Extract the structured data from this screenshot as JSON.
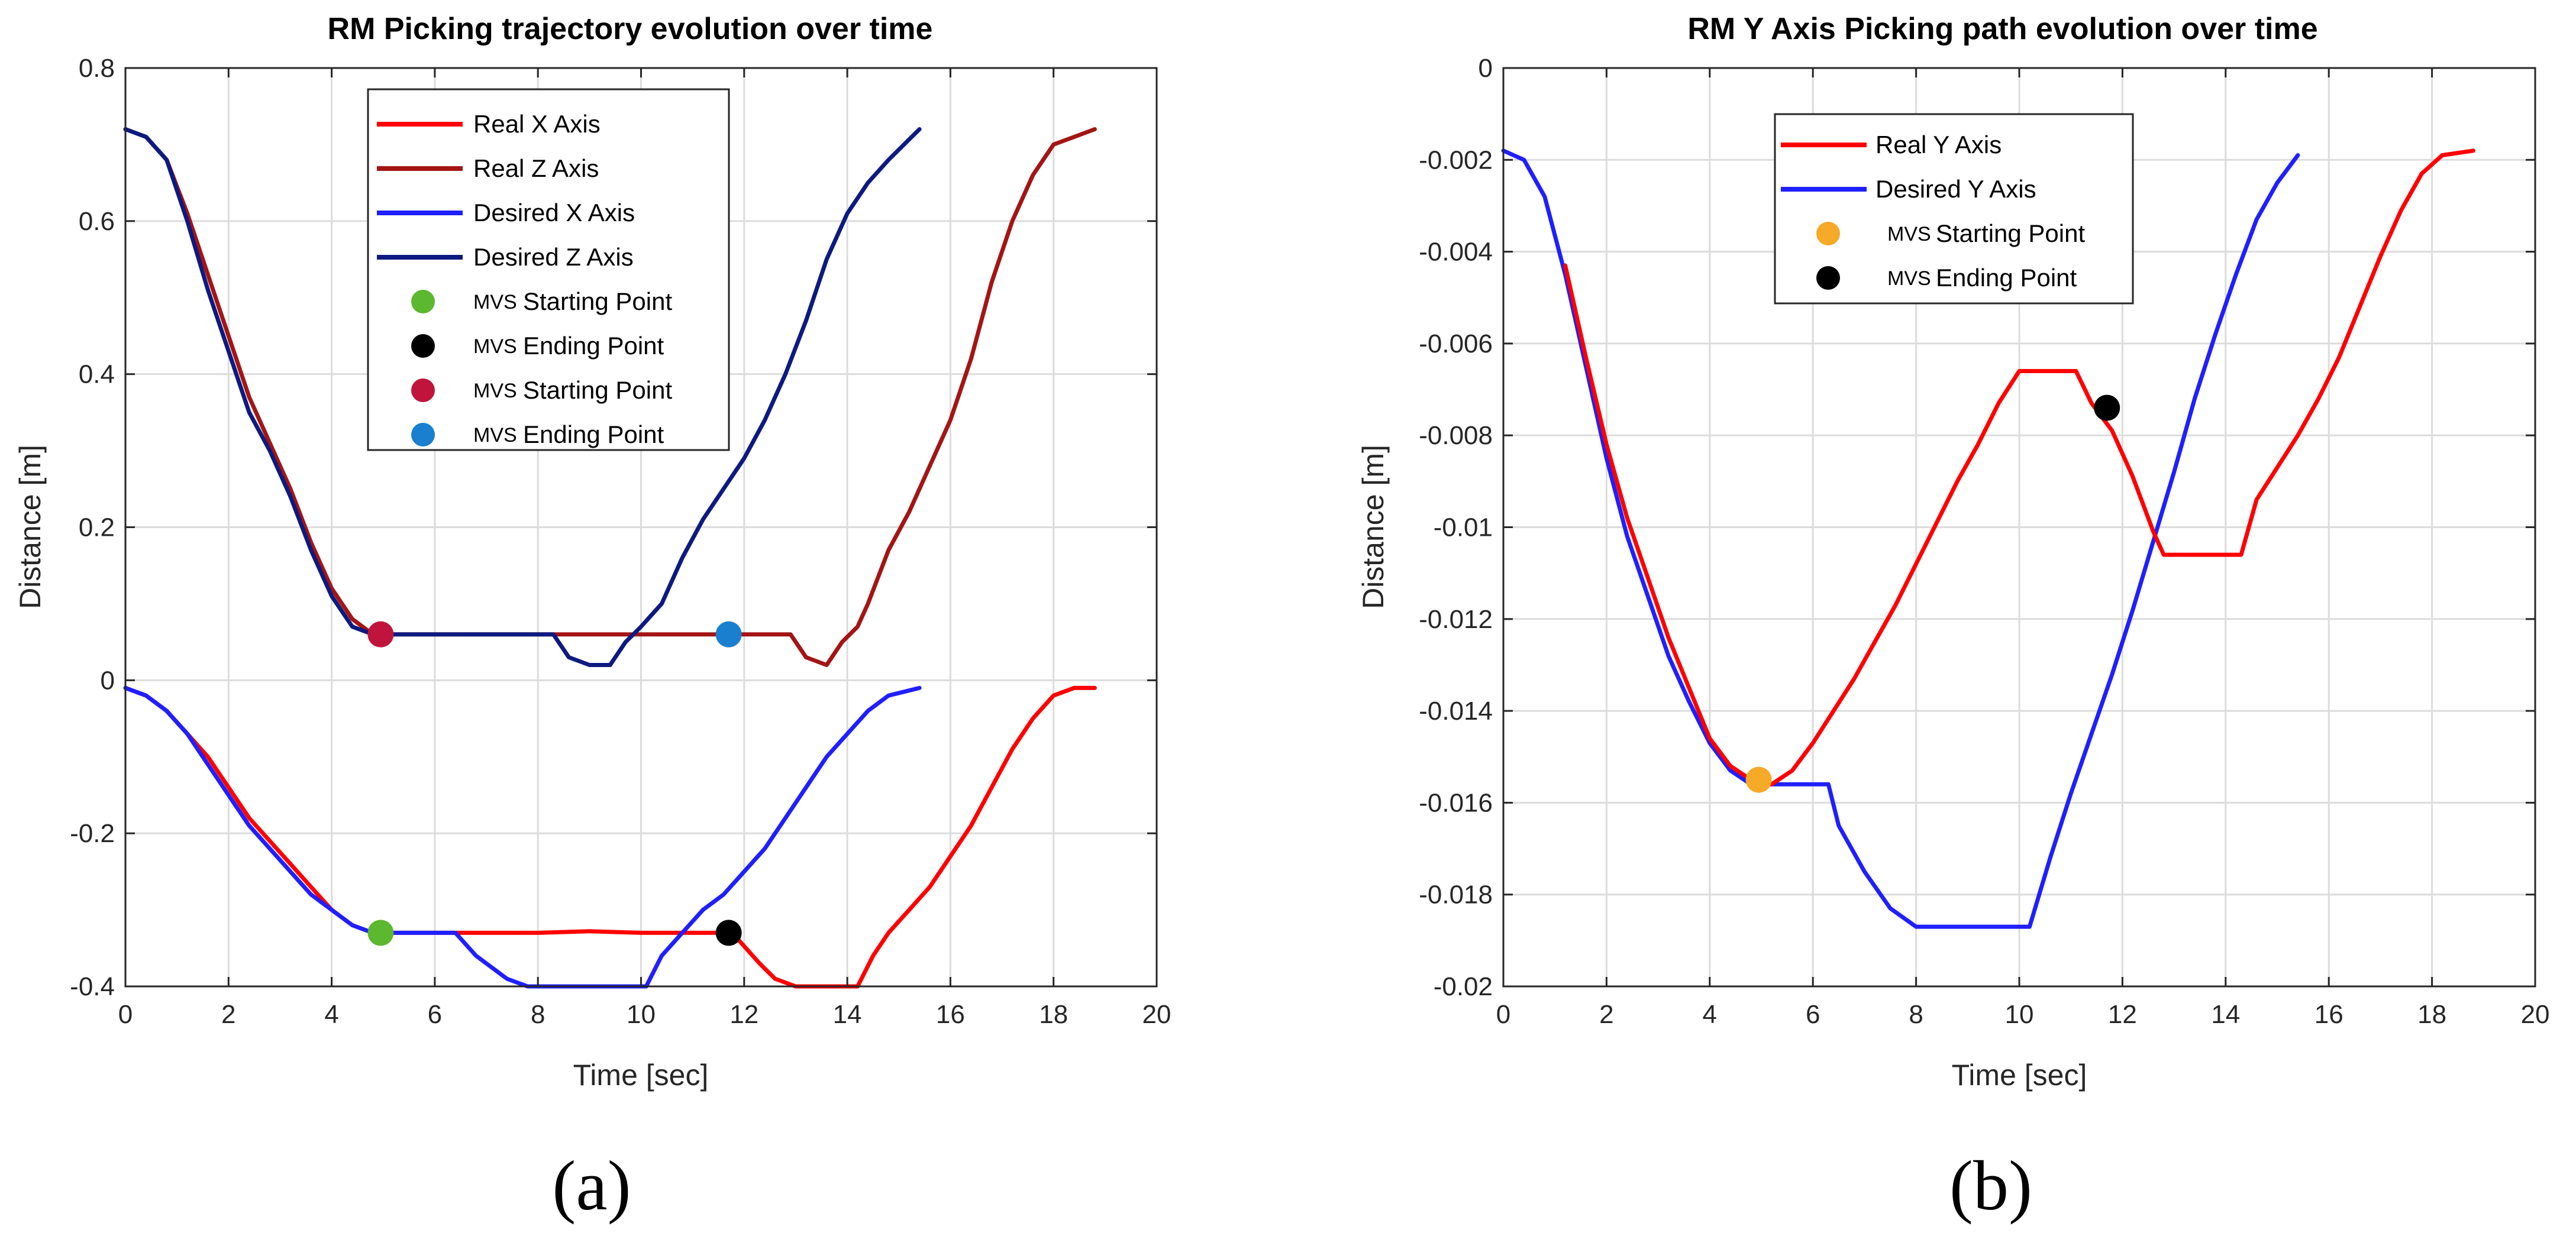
{
  "chart_data": [
    {
      "type": "line",
      "panel": "(a)",
      "title": "RM Picking trajectory evolution over time",
      "xlabel": "Time [sec]",
      "ylabel": "Distance [m]",
      "xlim": [
        0,
        20
      ],
      "ylim": [
        -0.4,
        0.8
      ],
      "xticks": [
        "0",
        "2",
        "4",
        "6",
        "8",
        "10",
        "12",
        "14",
        "16",
        "18",
        "20"
      ],
      "yticks": [
        "-0.4",
        "-0.2",
        "0",
        "0.2",
        "0.4",
        "0.6",
        "0.8"
      ],
      "grid": true,
      "legend_position": "top-center",
      "legend": [
        {
          "label": "Real X Axis",
          "kind": "line",
          "color": "#ff0000"
        },
        {
          "label": "Real Z Axis",
          "kind": "line",
          "color": "#a31515"
        },
        {
          "label": "Desired X Axis",
          "kind": "line",
          "color": "#1f1fff"
        },
        {
          "label": "Desired Z Axis",
          "kind": "line",
          "color": "#0d1a80"
        },
        {
          "prefix": "MVS",
          "label": "Starting Point",
          "kind": "marker",
          "color": "#5cb82e"
        },
        {
          "prefix": "MVS",
          "label": "Ending Point",
          "kind": "marker",
          "color": "#000000"
        },
        {
          "prefix": "MVS",
          "label": "Starting Point",
          "kind": "marker",
          "color": "#c0143c"
        },
        {
          "prefix": "MVS",
          "label": "Ending Point",
          "kind": "marker",
          "color": "#1a7fcf"
        }
      ],
      "series": [
        {
          "name": "Real Z Axis",
          "color": "#a31515",
          "points": [
            [
              0,
              0.72
            ],
            [
              0.4,
              0.71
            ],
            [
              0.8,
              0.68
            ],
            [
              1.2,
              0.61
            ],
            [
              1.6,
              0.53
            ],
            [
              2,
              0.45
            ],
            [
              2.4,
              0.37
            ],
            [
              2.8,
              0.31
            ],
            [
              3.2,
              0.25
            ],
            [
              3.6,
              0.18
            ],
            [
              4,
              0.12
            ],
            [
              4.4,
              0.08
            ],
            [
              4.8,
              0.06
            ],
            [
              5,
              0.06
            ],
            [
              12.9,
              0.06
            ],
            [
              13.2,
              0.03
            ],
            [
              13.6,
              0.02
            ],
            [
              13.9,
              0.05
            ],
            [
              14.2,
              0.07
            ],
            [
              14.4,
              0.1
            ],
            [
              14.8,
              0.17
            ],
            [
              15.2,
              0.22
            ],
            [
              15.6,
              0.28
            ],
            [
              16,
              0.34
            ],
            [
              16.4,
              0.42
            ],
            [
              16.8,
              0.52
            ],
            [
              17.2,
              0.6
            ],
            [
              17.6,
              0.66
            ],
            [
              18,
              0.7
            ],
            [
              18.4,
              0.71
            ],
            [
              18.8,
              0.72
            ]
          ]
        },
        {
          "name": "Desired Z Axis",
          "color": "#0d1a80",
          "points": [
            [
              0,
              0.72
            ],
            [
              0.4,
              0.71
            ],
            [
              0.8,
              0.68
            ],
            [
              1.2,
              0.6
            ],
            [
              1.6,
              0.51
            ],
            [
              2,
              0.43
            ],
            [
              2.4,
              0.35
            ],
            [
              2.8,
              0.3
            ],
            [
              3.2,
              0.24
            ],
            [
              3.6,
              0.17
            ],
            [
              4,
              0.11
            ],
            [
              4.4,
              0.07
            ],
            [
              4.8,
              0.06
            ],
            [
              8.3,
              0.06
            ],
            [
              8.6,
              0.03
            ],
            [
              9,
              0.02
            ],
            [
              9.4,
              0.02
            ],
            [
              9.7,
              0.05
            ],
            [
              10,
              0.07
            ],
            [
              10.4,
              0.1
            ],
            [
              10.8,
              0.16
            ],
            [
              11.2,
              0.21
            ],
            [
              11.6,
              0.25
            ],
            [
              12,
              0.29
            ],
            [
              12.4,
              0.34
            ],
            [
              12.8,
              0.4
            ],
            [
              13.2,
              0.47
            ],
            [
              13.6,
              0.55
            ],
            [
              14,
              0.61
            ],
            [
              14.4,
              0.65
            ],
            [
              14.8,
              0.68
            ],
            [
              15.4,
              0.72
            ]
          ]
        },
        {
          "name": "Real X Axis",
          "color": "#ff0000",
          "points": [
            [
              0,
              -0.01
            ],
            [
              0.4,
              -0.02
            ],
            [
              0.8,
              -0.04
            ],
            [
              1.2,
              -0.07
            ],
            [
              1.6,
              -0.1
            ],
            [
              2,
              -0.14
            ],
            [
              2.4,
              -0.18
            ],
            [
              2.8,
              -0.21
            ],
            [
              3.2,
              -0.24
            ],
            [
              3.6,
              -0.27
            ],
            [
              4,
              -0.3
            ],
            [
              4.4,
              -0.32
            ],
            [
              4.8,
              -0.33
            ],
            [
              8,
              -0.33
            ],
            [
              9,
              -0.328
            ],
            [
              10,
              -0.33
            ],
            [
              11.5,
              -0.33
            ],
            [
              11.9,
              -0.34
            ],
            [
              12.3,
              -0.37
            ],
            [
              12.6,
              -0.39
            ],
            [
              13,
              -0.4
            ],
            [
              14.2,
              -0.4
            ],
            [
              14.5,
              -0.36
            ],
            [
              14.8,
              -0.33
            ],
            [
              15.2,
              -0.3
            ],
            [
              15.6,
              -0.27
            ],
            [
              16,
              -0.23
            ],
            [
              16.4,
              -0.19
            ],
            [
              16.8,
              -0.14
            ],
            [
              17.2,
              -0.09
            ],
            [
              17.6,
              -0.05
            ],
            [
              18,
              -0.02
            ],
            [
              18.4,
              -0.01
            ],
            [
              18.8,
              -0.01
            ]
          ]
        },
        {
          "name": "Desired X Axis",
          "color": "#1f1fff",
          "points": [
            [
              0,
              -0.01
            ],
            [
              0.4,
              -0.02
            ],
            [
              0.8,
              -0.04
            ],
            [
              1.2,
              -0.07
            ],
            [
              1.6,
              -0.11
            ],
            [
              2,
              -0.15
            ],
            [
              2.4,
              -0.19
            ],
            [
              2.8,
              -0.22
            ],
            [
              3.2,
              -0.25
            ],
            [
              3.6,
              -0.28
            ],
            [
              4,
              -0.3
            ],
            [
              4.4,
              -0.32
            ],
            [
              4.8,
              -0.33
            ],
            [
              6.4,
              -0.33
            ],
            [
              6.8,
              -0.36
            ],
            [
              7.4,
              -0.39
            ],
            [
              7.8,
              -0.4
            ],
            [
              10.1,
              -0.4
            ],
            [
              10.4,
              -0.36
            ],
            [
              10.8,
              -0.33
            ],
            [
              11.2,
              -0.3
            ],
            [
              11.6,
              -0.28
            ],
            [
              12,
              -0.25
            ],
            [
              12.4,
              -0.22
            ],
            [
              12.8,
              -0.18
            ],
            [
              13.2,
              -0.14
            ],
            [
              13.6,
              -0.1
            ],
            [
              14,
              -0.07
            ],
            [
              14.4,
              -0.04
            ],
            [
              14.8,
              -0.02
            ],
            [
              15.4,
              -0.01
            ]
          ]
        }
      ],
      "markers": [
        {
          "label": "MVS Starting Point",
          "x": 4.95,
          "y": 0.06,
          "color": "#c0143c"
        },
        {
          "label": "MVS Ending Point",
          "x": 11.7,
          "y": 0.06,
          "color": "#1a7fcf"
        },
        {
          "label": "MVS Starting Point",
          "x": 4.95,
          "y": -0.33,
          "color": "#5cb82e"
        },
        {
          "label": "MVS Ending Point",
          "x": 11.7,
          "y": -0.33,
          "color": "#000000"
        }
      ]
    },
    {
      "type": "line",
      "panel": "(b)",
      "title": "RM Y Axis Picking path evolution over time",
      "xlabel": "Time [sec]",
      "ylabel": "Distance [m]",
      "xlim": [
        0,
        20
      ],
      "ylim": [
        -0.02,
        0
      ],
      "xticks": [
        "0",
        "2",
        "4",
        "6",
        "8",
        "10",
        "12",
        "14",
        "16",
        "18",
        "20"
      ],
      "yticks": [
        "-0.02",
        "-0.018",
        "-0.016",
        "-0.014",
        "-0.012",
        "-0.01",
        "-0.008",
        "-0.006",
        "-0.004",
        "-0.002",
        "0"
      ],
      "grid": true,
      "legend_position": "top-left",
      "legend": [
        {
          "label": "Real Y Axis",
          "kind": "line",
          "color": "#ff0000"
        },
        {
          "label": "Desired Y Axis",
          "kind": "line",
          "color": "#1f1fff"
        },
        {
          "prefix": "MVS",
          "label": "Starting Point",
          "kind": "marker",
          "color": "#f7a928"
        },
        {
          "prefix": "MVS",
          "label": "Ending Point",
          "kind": "marker",
          "color": "#000000"
        }
      ],
      "series": [
        {
          "name": "Desired Y Axis",
          "color": "#1f1fff",
          "points": [
            [
              0,
              -0.0018
            ],
            [
              0.4,
              -0.002
            ],
            [
              0.8,
              -0.0028
            ],
            [
              1.2,
              -0.0045
            ],
            [
              1.6,
              -0.0065
            ],
            [
              2,
              -0.0085
            ],
            [
              2.4,
              -0.0102
            ],
            [
              2.8,
              -0.0115
            ],
            [
              3.2,
              -0.0128
            ],
            [
              3.6,
              -0.0138
            ],
            [
              4,
              -0.0147
            ],
            [
              4.4,
              -0.0153
            ],
            [
              4.8,
              -0.0156
            ],
            [
              6.3,
              -0.0156
            ],
            [
              6.5,
              -0.0165
            ],
            [
              7,
              -0.0175
            ],
            [
              7.5,
              -0.0183
            ],
            [
              8,
              -0.0187
            ],
            [
              10.2,
              -0.0187
            ],
            [
              10.6,
              -0.0172
            ],
            [
              11,
              -0.0158
            ],
            [
              11.4,
              -0.0145
            ],
            [
              11.8,
              -0.0132
            ],
            [
              12.2,
              -0.0118
            ],
            [
              12.6,
              -0.0103
            ],
            [
              13,
              -0.0088
            ],
            [
              13.4,
              -0.0072
            ],
            [
              13.8,
              -0.0058
            ],
            [
              14.2,
              -0.0045
            ],
            [
              14.6,
              -0.0033
            ],
            [
              15,
              -0.0025
            ],
            [
              15.4,
              -0.0019
            ]
          ]
        },
        {
          "name": "Real Y Axis",
          "color": "#ff0000",
          "points": [
            [
              1.2,
              -0.0043
            ],
            [
              1.6,
              -0.0063
            ],
            [
              2,
              -0.0082
            ],
            [
              2.4,
              -0.0098
            ],
            [
              2.8,
              -0.0111
            ],
            [
              3.2,
              -0.0124
            ],
            [
              3.6,
              -0.0135
            ],
            [
              4,
              -0.0146
            ],
            [
              4.4,
              -0.0152
            ],
            [
              4.8,
              -0.0155
            ],
            [
              5.2,
              -0.0156
            ],
            [
              5.6,
              -0.0153
            ],
            [
              6,
              -0.0147
            ],
            [
              6.4,
              -0.014
            ],
            [
              6.8,
              -0.0133
            ],
            [
              7.2,
              -0.0125
            ],
            [
              7.6,
              -0.0117
            ],
            [
              8,
              -0.0108
            ],
            [
              8.4,
              -0.0099
            ],
            [
              8.8,
              -0.009
            ],
            [
              9.2,
              -0.0082
            ],
            [
              9.6,
              -0.0073
            ],
            [
              10,
              -0.0066
            ],
            [
              11.1,
              -0.0066
            ],
            [
              11.4,
              -0.0073
            ],
            [
              11.8,
              -0.0079
            ],
            [
              12.2,
              -0.0089
            ],
            [
              12.6,
              -0.0101
            ],
            [
              12.8,
              -0.0106
            ],
            [
              14.3,
              -0.0106
            ],
            [
              14.6,
              -0.0094
            ],
            [
              15,
              -0.0087
            ],
            [
              15.4,
              -0.008
            ],
            [
              15.8,
              -0.0072
            ],
            [
              16.2,
              -0.0063
            ],
            [
              16.6,
              -0.0052
            ],
            [
              17,
              -0.0041
            ],
            [
              17.4,
              -0.0031
            ],
            [
              17.8,
              -0.0023
            ],
            [
              18.2,
              -0.0019
            ],
            [
              18.8,
              -0.0018
            ]
          ]
        }
      ],
      "markers": [
        {
          "label": "MVS Starting Point",
          "x": 4.95,
          "y": -0.0155,
          "color": "#f7a928"
        },
        {
          "label": "MVS Ending Point",
          "x": 11.7,
          "y": -0.0074,
          "color": "#000000"
        }
      ]
    }
  ]
}
